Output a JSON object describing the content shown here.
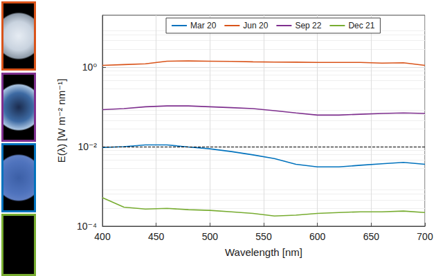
{
  "chart_data": {
    "type": "line",
    "x": [
      400,
      420,
      440,
      460,
      480,
      500,
      520,
      540,
      560,
      580,
      600,
      620,
      640,
      660,
      680,
      700
    ],
    "series": [
      {
        "name": "Mar 20",
        "color": "#0072BD",
        "values": [
          0.0095,
          0.01,
          0.011,
          0.011,
          0.0098,
          0.0088,
          0.0075,
          0.0062,
          0.005,
          0.0036,
          0.0031,
          0.0031,
          0.0034,
          0.0037,
          0.004,
          0.0036
        ]
      },
      {
        "name": "Jun 20",
        "color": "#D95319",
        "values": [
          1.1,
          1.15,
          1.2,
          1.4,
          1.42,
          1.4,
          1.38,
          1.35,
          1.33,
          1.32,
          1.3,
          1.3,
          1.3,
          1.25,
          1.28,
          1.1
        ]
      },
      {
        "name": "Sep 22",
        "color": "#7E2F8E",
        "values": [
          0.085,
          0.09,
          0.1,
          0.105,
          0.105,
          0.1,
          0.095,
          0.09,
          0.08,
          0.07,
          0.062,
          0.062,
          0.065,
          0.068,
          0.07,
          0.068
        ]
      },
      {
        "name": "Dec 21",
        "color": "#77AC30",
        "values": [
          0.00052,
          0.0003,
          0.00027,
          0.00028,
          0.00026,
          0.00025,
          0.00023,
          0.00021,
          0.00018,
          0.00019,
          0.00021,
          0.00022,
          0.00023,
          0.00023,
          0.00024,
          0.00022
        ]
      }
    ],
    "xlim": [
      400,
      700
    ],
    "xticks": [
      400,
      450,
      500,
      550,
      600,
      650,
      700
    ],
    "ylim": [
      0.0001,
      20
    ],
    "yticks": [
      {
        "value": 0.0001,
        "label": "10⁻⁴"
      },
      {
        "value": 0.01,
        "label": "10⁻²"
      },
      {
        "value": 1,
        "label": "10⁰"
      }
    ],
    "log": "y",
    "grid": true,
    "legend": "top",
    "x_label": "Wavelength [nm]",
    "y_label": "E(λ) [W m⁻² nm⁻¹]",
    "reference_line": {
      "value": 0.013,
      "line_style": "dashed",
      "color": "#000000"
    }
  }
}
